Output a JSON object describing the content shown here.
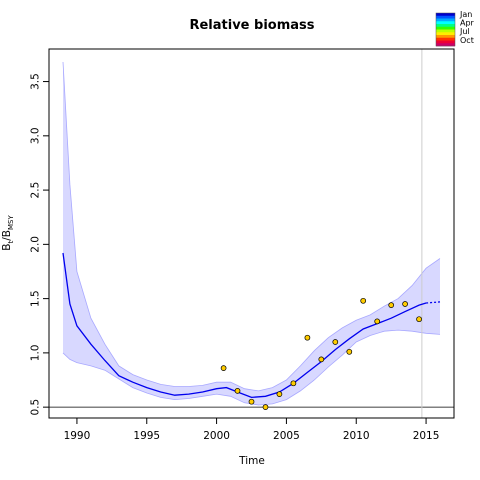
{
  "chart_data": {
    "type": "line",
    "title": "Relative biomass",
    "xlabel": "Time",
    "ylabel_main": "B",
    "ylabel_sub1": "t",
    "ylabel_sep": "/B",
    "ylabel_sub2": "MSY",
    "xlim": [
      1988,
      2017
    ],
    "ylim": [
      0.4,
      3.8
    ],
    "x_ticks": [
      1990,
      1995,
      2000,
      2005,
      2010,
      2015
    ],
    "x_tick_labels": [
      "1990",
      "1995",
      "2000",
      "2005",
      "2010",
      "2015"
    ],
    "y_ticks": [
      0.5,
      1.0,
      1.5,
      2.0,
      2.5,
      3.0,
      3.5
    ],
    "y_tick_labels": [
      "0.5",
      "1.0",
      "1.5",
      "2.0",
      "2.5",
      "3.0",
      "3.5"
    ],
    "reference_lines": {
      "horizontal_y": 0.5,
      "vertical_x": 2014.7
    },
    "estimate": {
      "x": [
        1989.0,
        1989.5,
        1990.0,
        1991.0,
        1992.0,
        1993.0,
        1994.0,
        1995.0,
        1996.0,
        1997.0,
        1998.0,
        1999.0,
        2000.0,
        2000.7,
        2001.5,
        2002.5,
        2003.5,
        2004.5,
        2005.5,
        2006.5,
        2007.5,
        2008.5,
        2009.5,
        2010.5,
        2011.5,
        2012.5,
        2013.5,
        2014.5,
        2015.0
      ],
      "y": [
        1.92,
        1.45,
        1.25,
        1.08,
        0.93,
        0.79,
        0.73,
        0.68,
        0.64,
        0.61,
        0.62,
        0.64,
        0.67,
        0.68,
        0.64,
        0.59,
        0.6,
        0.64,
        0.72,
        0.82,
        0.92,
        1.03,
        1.13,
        1.22,
        1.27,
        1.32,
        1.38,
        1.44,
        1.46
      ]
    },
    "projection": {
      "x": [
        2015.0,
        2016.0
      ],
      "y": [
        1.46,
        1.47
      ]
    },
    "ci_upper": {
      "x": [
        1989.0,
        1989.5,
        1990.0,
        1991.0,
        1992.0,
        1993.0,
        1994.0,
        1995.0,
        1996.0,
        1997.0,
        1998.0,
        1999.0,
        2000.0,
        2001.0,
        2002.0,
        2003.0,
        2004.0,
        2005.0,
        2006.0,
        2007.0,
        2008.0,
        2009.0,
        2010.0,
        2011.0,
        2012.0,
        2013.0,
        2014.0,
        2015.0,
        2016.0
      ],
      "y": [
        3.68,
        2.55,
        1.75,
        1.32,
        1.08,
        0.88,
        0.8,
        0.75,
        0.71,
        0.69,
        0.69,
        0.7,
        0.73,
        0.73,
        0.67,
        0.65,
        0.68,
        0.75,
        0.88,
        1.02,
        1.14,
        1.23,
        1.3,
        1.35,
        1.43,
        1.5,
        1.62,
        1.78,
        1.87
      ]
    },
    "ci_lower": {
      "x": [
        1989.0,
        1989.5,
        1990.0,
        1991.0,
        1992.0,
        1993.0,
        1994.0,
        1995.0,
        1996.0,
        1997.0,
        1998.0,
        1999.0,
        2000.0,
        2001.0,
        2002.0,
        2003.0,
        2004.0,
        2005.0,
        2006.0,
        2007.0,
        2008.0,
        2009.0,
        2010.0,
        2011.0,
        2012.0,
        2013.0,
        2014.0,
        2015.0,
        2016.0
      ],
      "y": [
        1.0,
        0.94,
        0.91,
        0.88,
        0.84,
        0.76,
        0.68,
        0.63,
        0.59,
        0.57,
        0.58,
        0.6,
        0.62,
        0.6,
        0.54,
        0.52,
        0.53,
        0.57,
        0.65,
        0.75,
        0.87,
        0.98,
        1.1,
        1.16,
        1.2,
        1.21,
        1.2,
        1.18,
        1.17
      ]
    },
    "observations": {
      "x": [
        2000.5,
        2001.5,
        2002.5,
        2003.5,
        2004.5,
        2005.5,
        2006.5,
        2007.5,
        2008.5,
        2009.5,
        2010.5,
        2011.5,
        2012.5,
        2013.5,
        2014.5
      ],
      "y": [
        0.86,
        0.65,
        0.55,
        0.5,
        0.62,
        0.72,
        1.14,
        0.94,
        1.1,
        1.01,
        1.48,
        1.29,
        1.44,
        1.45,
        1.31
      ]
    },
    "legend": {
      "placement": "top-right",
      "labels": [
        "Jan",
        "Apr",
        "Jul",
        "Oct"
      ],
      "colors": [
        "#0000cc",
        "#0055ff",
        "#00aaff",
        "#00ffff",
        "#00ff88",
        "#33ff00",
        "#bbff00",
        "#ffee00",
        "#ff9900",
        "#ff3300",
        "#ee0033",
        "#cc0066"
      ]
    },
    "colors": {
      "line": "#0000ee",
      "ci_fill": "#d8d8ff",
      "ci_edge": "#a8a8ff",
      "point_fill": "#ffcc00",
      "vline": "#cccccc"
    },
    "grid": false
  }
}
